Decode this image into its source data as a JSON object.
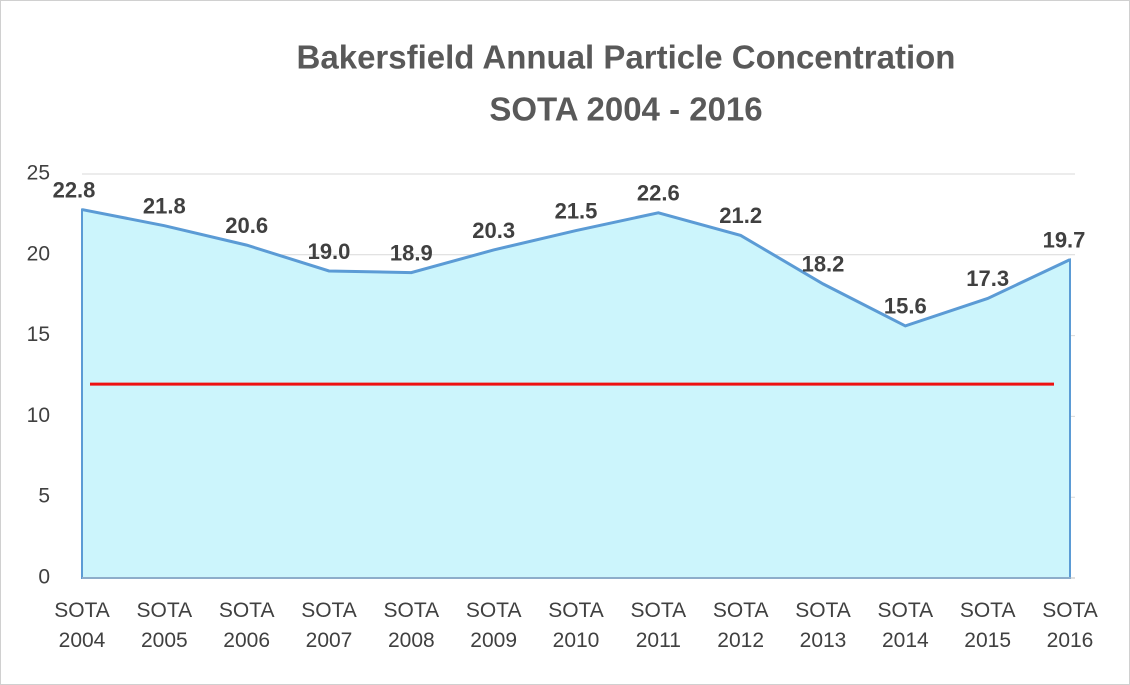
{
  "chart_data": {
    "type": "area",
    "title": "Bakersfield Annual Particle Concentration",
    "subtitle": "SOTA 2004 - 2016",
    "categories": [
      "SOTA 2004",
      "SOTA 2005",
      "SOTA 2006",
      "SOTA 2007",
      "SOTA 2008",
      "SOTA 2009",
      "SOTA 2010",
      "SOTA 2011",
      "SOTA 2012",
      "SOTA 2013",
      "SOTA 2014",
      "SOTA 2015",
      "SOTA 2016"
    ],
    "values": [
      22.8,
      21.8,
      20.6,
      19,
      18.9,
      20.3,
      21.5,
      22.6,
      21.2,
      18.2,
      15.6,
      17.3,
      19.7
    ],
    "value_labels": [
      "22.8",
      "21.8",
      "20.6",
      "19.0",
      "18.9",
      "20.3",
      "21.5",
      "22.6",
      "21.2",
      "18.2",
      "15.6",
      "17.3",
      "19.7"
    ],
    "color": "#5b9bd5",
    "fill": "#ccf5fc",
    "reference_line": {
      "value": 12,
      "color": "#ee1111"
    },
    "ylim": [
      0,
      25
    ],
    "yticks": [
      0,
      5,
      10,
      15,
      20,
      25
    ],
    "grid": true
  }
}
